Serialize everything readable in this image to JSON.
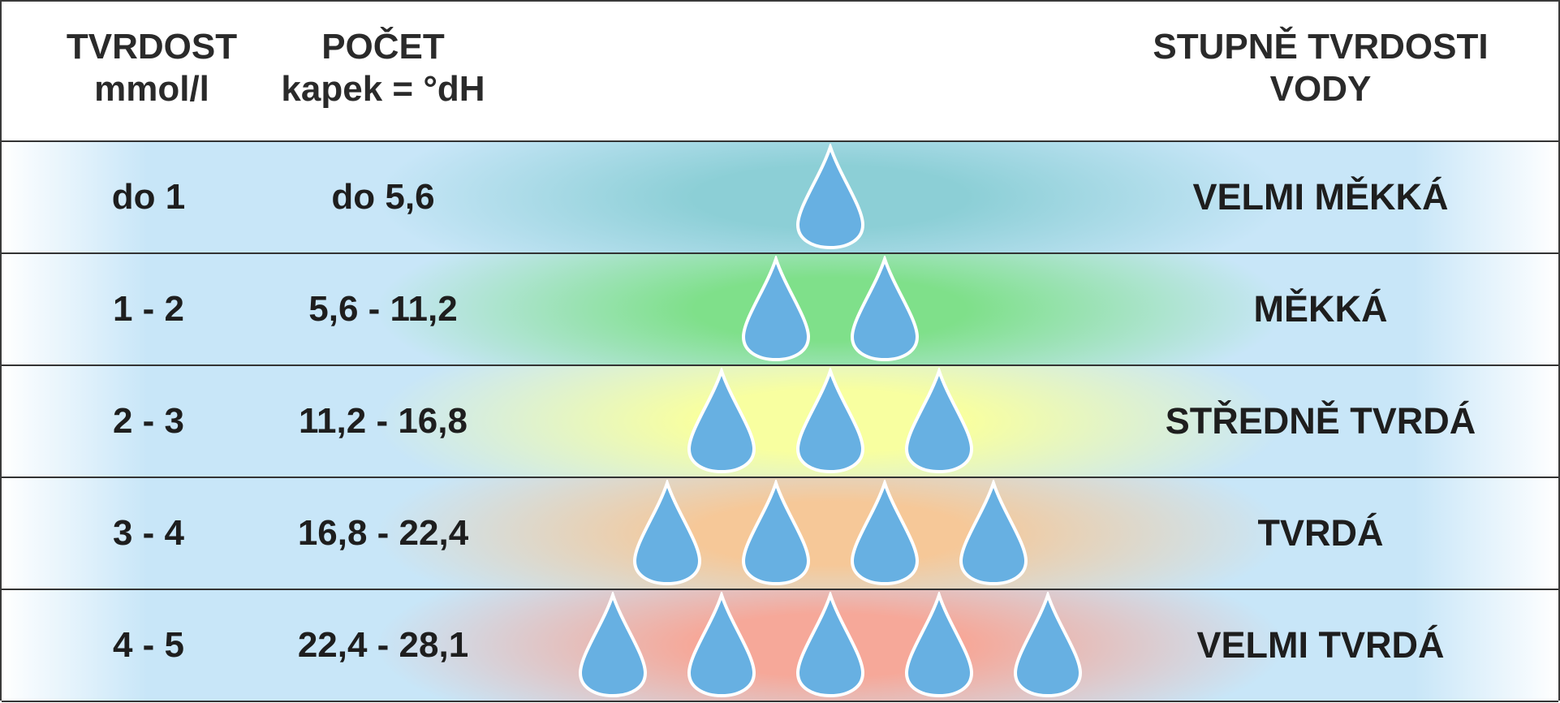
{
  "header": {
    "col1": [
      "TVRDOST",
      "mmol/l"
    ],
    "col2": [
      "POČET",
      "kapek = °dH"
    ],
    "col4": [
      "STUPNĚ TVRDOSTI",
      "VODY"
    ]
  },
  "rows": [
    {
      "mmol": "do 1",
      "dh": "do 5,6",
      "label": "VELMI MĚKKÁ",
      "drops": 1,
      "color": "#8ccfd6"
    },
    {
      "mmol": "1 - 2",
      "dh": "5,6 - 11,2",
      "label": "MĚKKÁ",
      "drops": 2,
      "color": "#7fe08a"
    },
    {
      "mmol": "2 - 3",
      "dh": "11,2 - 16,8",
      "label": "STŘEDNĚ TVRDÁ",
      "drops": 3,
      "color": "#f8ffa0"
    },
    {
      "mmol": "3 - 4",
      "dh": "16,8 - 22,4",
      "label": "TVRDÁ",
      "drops": 4,
      "color": "#f6c898"
    },
    {
      "mmol": "4 - 5",
      "dh": "22,4 - 28,1",
      "label": "VELMI TVRDÁ",
      "drops": 5,
      "color": "#f6a899"
    }
  ],
  "colors": {
    "drop": "#67b0e2",
    "edge": "#c8e6f8"
  }
}
